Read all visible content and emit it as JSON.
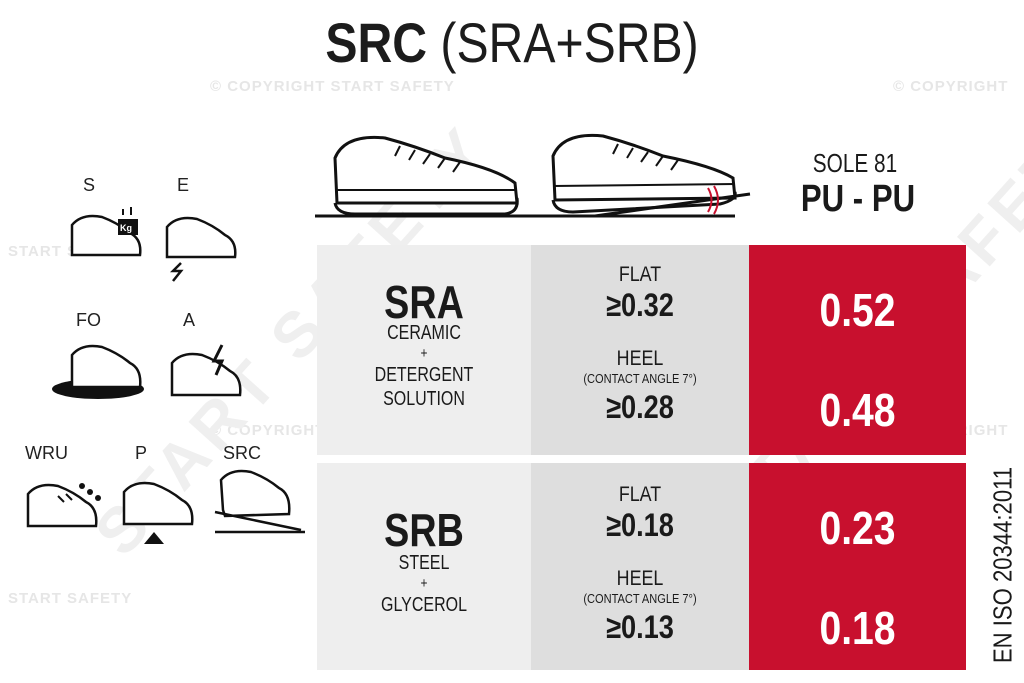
{
  "watermark": {
    "copyright": "© COPYRIGHT START SAFETY",
    "copyright_short": "© COPYRIGHT",
    "brand": "START SAFETY",
    "big_text": "START SAFETY"
  },
  "title": {
    "bold": "SRC",
    "rest": " (SRA+SRB)"
  },
  "sole": {
    "label": "SOLE 81",
    "value": "PU - PU"
  },
  "icons": [
    {
      "label": "S",
      "icon": "toecap-weight-shoe-icon"
    },
    {
      "label": "E",
      "icon": "energy-absorbing-heel-shoe-icon"
    },
    {
      "label": "FO",
      "icon": "fuel-oil-resistant-shoe-icon"
    },
    {
      "label": "A",
      "icon": "antistatic-shoe-icon"
    },
    {
      "label": "WRU",
      "icon": "water-resistant-upper-shoe-icon"
    },
    {
      "label": "P",
      "icon": "penetration-resistant-shoe-icon"
    },
    {
      "label": "SRC",
      "icon": "slip-resistant-shoe-icon"
    }
  ],
  "tests": [
    {
      "code": "SRA",
      "desc": [
        "CERAMIC",
        "+",
        "DETERGENT",
        "SOLUTION"
      ],
      "flat": {
        "label": "FLAT",
        "req": "≥0.32",
        "result": "0.52"
      },
      "heel": {
        "label": "HEEL",
        "sub": "(CONTACT ANGLE 7°)",
        "req": "≥0.28",
        "result": "0.48"
      }
    },
    {
      "code": "SRB",
      "desc": [
        "STEEL",
        "+",
        "GLYCEROL"
      ],
      "flat": {
        "label": "FLAT",
        "req": "≥0.18",
        "result": "0.23"
      },
      "heel": {
        "label": "HEEL",
        "sub": "(CONTACT ANGLE 7°)",
        "req": "≥0.13",
        "result": "0.18"
      }
    }
  ],
  "standard": "EN ISO 20344:2011",
  "colors": {
    "red": "#c8102e",
    "grey": "#dedede",
    "light_grey": "#eeeeee",
    "text": "#1a1a1a"
  }
}
